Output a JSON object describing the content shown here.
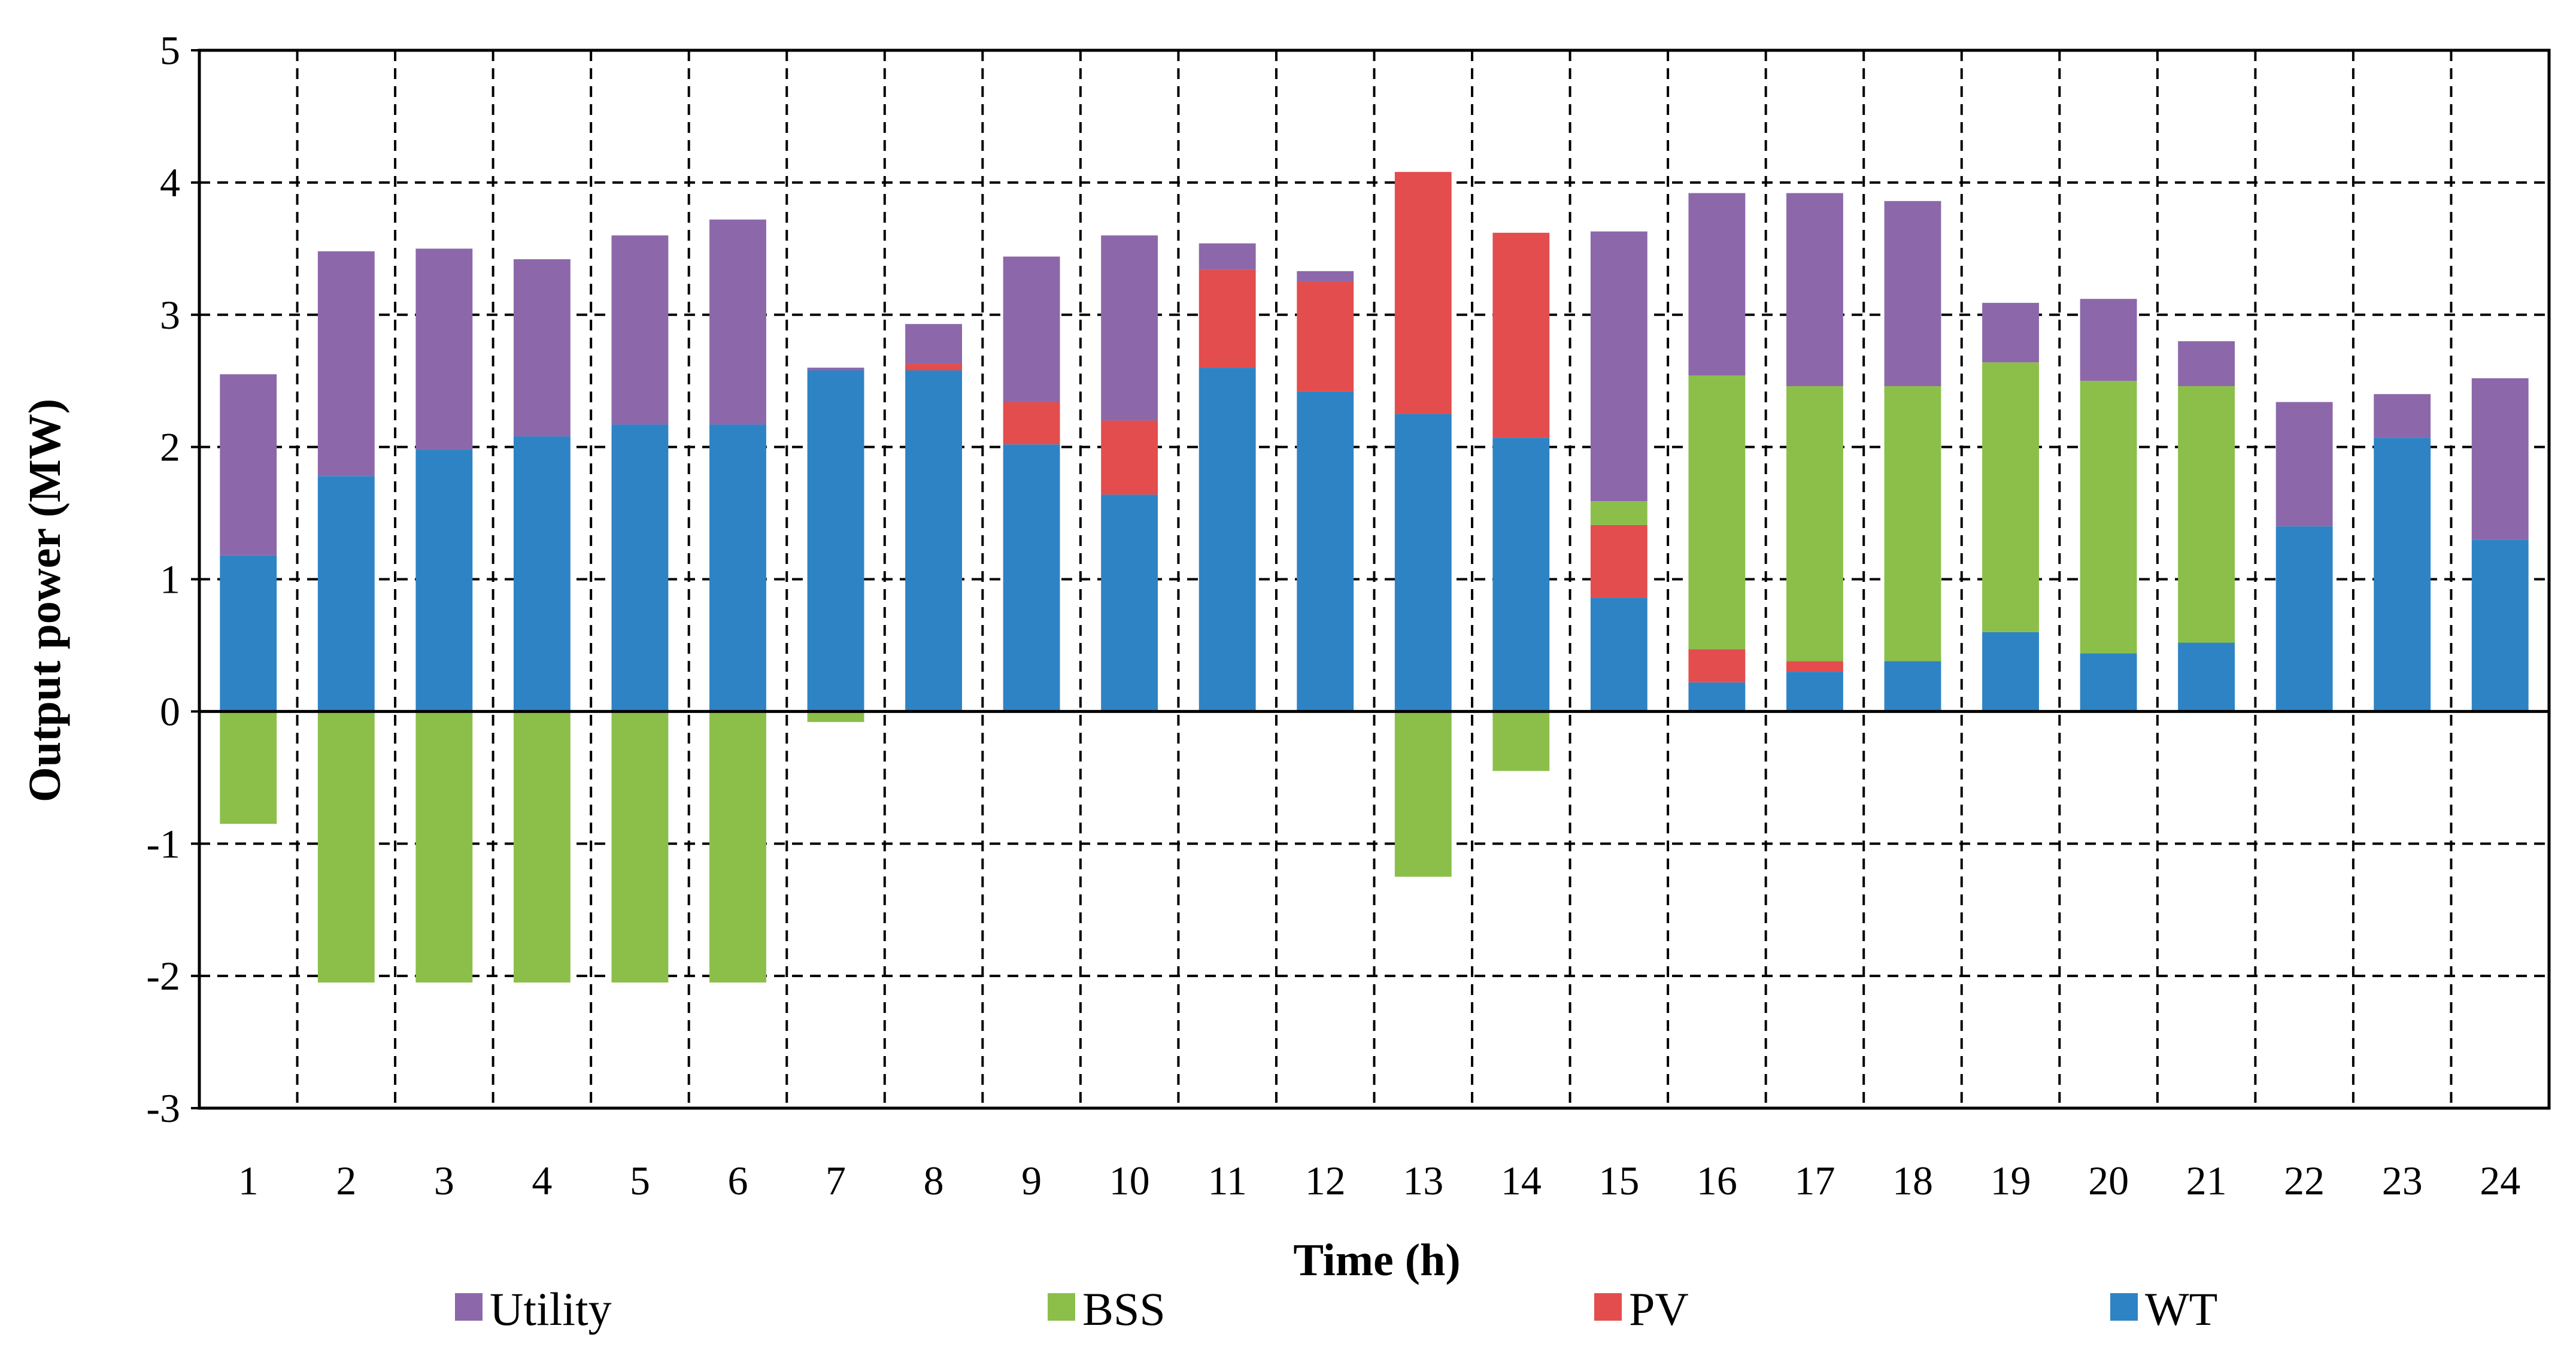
{
  "chart_data": {
    "type": "bar",
    "stacked": true,
    "title": "",
    "xlabel": "Time (h)",
    "ylabel": "Output power (MW)",
    "ylim": [
      -3,
      5
    ],
    "yticks": [
      5,
      4,
      3,
      2,
      1,
      0,
      -1,
      -2,
      -3
    ],
    "grid": true,
    "legend_position": "bottom",
    "categories": [
      "1",
      "2",
      "3",
      "4",
      "5",
      "6",
      "7",
      "8",
      "9",
      "10",
      "11",
      "12",
      "13",
      "14",
      "15",
      "16",
      "17",
      "18",
      "19",
      "20",
      "21",
      "22",
      "23",
      "24"
    ],
    "series": [
      {
        "name": "WT",
        "color": "#2e83c4",
        "values": [
          1.18,
          1.78,
          1.98,
          2.08,
          2.17,
          2.17,
          2.58,
          2.58,
          2.02,
          1.64,
          2.6,
          2.42,
          2.25,
          2.07,
          0.86,
          0.22,
          0.3,
          0.38,
          0.6,
          0.44,
          0.52,
          1.4,
          2.07,
          1.3
        ]
      },
      {
        "name": "PV",
        "color": "#e34d4d",
        "values": [
          0,
          0,
          0,
          0,
          0,
          0,
          0,
          0.05,
          0.32,
          0.56,
          0.74,
          0.83,
          1.83,
          1.55,
          0.55,
          0.25,
          0.08,
          0,
          0,
          0,
          0,
          0,
          0,
          0
        ]
      },
      {
        "name": "BSS",
        "color": "#8bbf4a",
        "values": [
          -0.85,
          -2.05,
          -2.05,
          -2.05,
          -2.05,
          -2.05,
          -0.08,
          0,
          0,
          0,
          0,
          0,
          -1.25,
          -0.45,
          0.18,
          2.07,
          2.08,
          2.08,
          2.04,
          2.06,
          1.94,
          0,
          0,
          0
        ]
      },
      {
        "name": "Utility",
        "color": "#8c68aa",
        "values": [
          1.37,
          1.7,
          1.52,
          1.34,
          1.43,
          1.55,
          0.02,
          0.3,
          1.1,
          1.4,
          0.2,
          0.08,
          0,
          0,
          2.04,
          1.38,
          1.46,
          1.4,
          0.45,
          0.62,
          0.34,
          0.94,
          0.33,
          1.22
        ]
      }
    ],
    "legend": [
      "Utility",
      "BSS",
      "PV",
      "WT"
    ]
  }
}
